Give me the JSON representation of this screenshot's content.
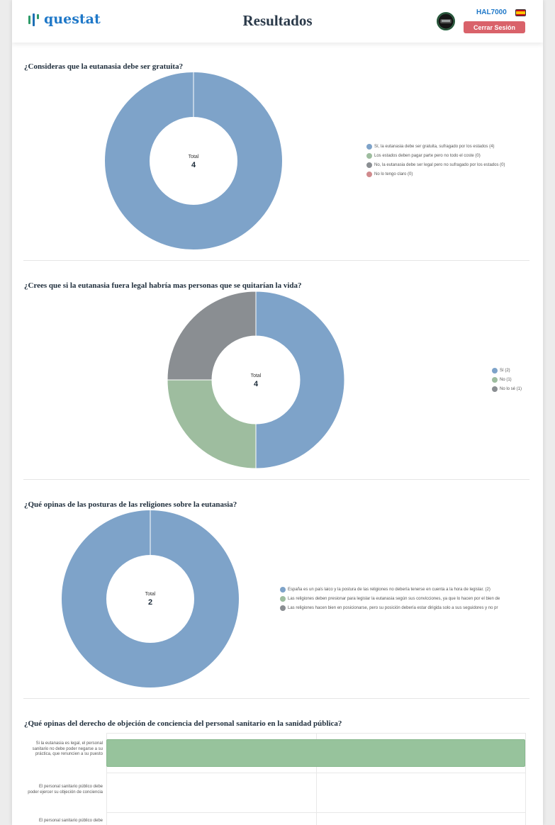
{
  "header": {
    "logo_text": "questat",
    "title": "Resultados",
    "username": "HAL7000",
    "logout_label": "Cerrar Sesión"
  },
  "colors": {
    "blue": "#7ea3c9",
    "green": "#9ebd9f",
    "gray": "#8a8e92",
    "red": "#d08a8d",
    "logout": "#d9626a",
    "accent": "#1f78c8"
  },
  "questions": [
    {
      "title": "¿Consideras que la eutanasia debe ser gratuita?",
      "center_label": "Total",
      "total": "4",
      "legend": [
        {
          "label": "Sí, la eutanasia debe ser gratuita, sufragado por los estados (4)",
          "color": "#7ea3c9"
        },
        {
          "label": "Los estados deben pagar parte pero no todo el coste (0)",
          "color": "#9ebd9f"
        },
        {
          "label": "No, la eutanasia debe ser legal pero no sufragado por los estados (0)",
          "color": "#8a8e92"
        },
        {
          "label": "No lo tengo claro (0)",
          "color": "#d08a8d"
        }
      ]
    },
    {
      "title": "¿Crees que si la eutanasia fuera legal habría mas personas que se quitarían la vida?",
      "center_label": "Total",
      "total": "4",
      "legend": [
        {
          "label": "Sí (2)",
          "color": "#7ea3c9"
        },
        {
          "label": "No (1)",
          "color": "#9ebd9f"
        },
        {
          "label": "No lo sé (1)",
          "color": "#8a8e92"
        }
      ]
    },
    {
      "title": "¿Qué opinas de las posturas de las religiones sobre la eutanasia?",
      "center_label": "Total",
      "total": "2",
      "legend": [
        {
          "label": "España es un país laico y la postura de las religiones no debería tenerse en cuenta a la hora de legislar. (2)",
          "color": "#7ea3c9"
        },
        {
          "label": "Las religiones deben presionar para legislar la eutanasia según sus convicciones, ya que lo hacen por el bien de",
          "color": "#9ebd9f"
        },
        {
          "label": "Las religiones hacen bien en posicionarse, pero su posición debería estar dirigida solo a sus seguidores y no pr",
          "color": "#8a8e92"
        }
      ]
    },
    {
      "title": "¿Qué opinas del derecho de objeción de conciencia del personal sanitario en la sanidad pública?",
      "bar_labels": [
        "Si la eutanasia es legal, el personal sanitario no debe poder negarse a su práctica, que renuncien a su puesto",
        "El personal sanitario público debe poder ejercer su objeción de conciencia",
        "El personal sanitario público debe"
      ]
    }
  ],
  "chart_data": [
    {
      "type": "pie",
      "title": "¿Consideras que la eutanasia debe ser gratuita?",
      "categories": [
        "Sí, la eutanasia debe ser gratuita, sufragado por los estados",
        "Los estados deben pagar parte pero no todo el coste",
        "No, la eutanasia debe ser legal pero no sufragado por los estados",
        "No lo tengo claro"
      ],
      "values": [
        4,
        0,
        0,
        0
      ],
      "colors": [
        "#7ea3c9",
        "#9ebd9f",
        "#8a8e92",
        "#d08a8d"
      ],
      "legend": "right"
    },
    {
      "type": "pie",
      "title": "¿Crees que si la eutanasia fuera legal habría mas personas que se quitarían la vida?",
      "categories": [
        "Sí",
        "No",
        "No lo sé"
      ],
      "values": [
        2,
        1,
        1
      ],
      "colors": [
        "#7ea3c9",
        "#9ebd9f",
        "#8a8e92"
      ],
      "legend": "right"
    },
    {
      "type": "pie",
      "title": "¿Qué opinas de las posturas de las religiones sobre la eutanasia?",
      "categories": [
        "España es un país laico y la postura de las religiones no debería tenerse en cuenta a la hora de legislar.",
        "Las religiones deben presionar para legislar la eutanasia según sus convicciones",
        "Las religiones hacen bien en posicionarse"
      ],
      "values": [
        2,
        0,
        0
      ],
      "colors": [
        "#7ea3c9",
        "#9ebd9f",
        "#8a8e92"
      ],
      "legend": "right"
    },
    {
      "type": "bar",
      "orientation": "horizontal",
      "title": "¿Qué opinas del derecho de objeción de conciencia del personal sanitario en la sanidad pública?",
      "categories": [
        "Si la eutanasia es legal, el personal sanitario no debe poder negarse a su práctica, que renuncien a su puesto",
        "El personal sanitario público debe poder ejercer su objeción de conciencia",
        "El personal sanitario público debe"
      ],
      "values": [
        2,
        0,
        0
      ],
      "xlim": [
        0,
        2
      ],
      "colors": [
        "#97c39c"
      ],
      "grid": true
    }
  ]
}
